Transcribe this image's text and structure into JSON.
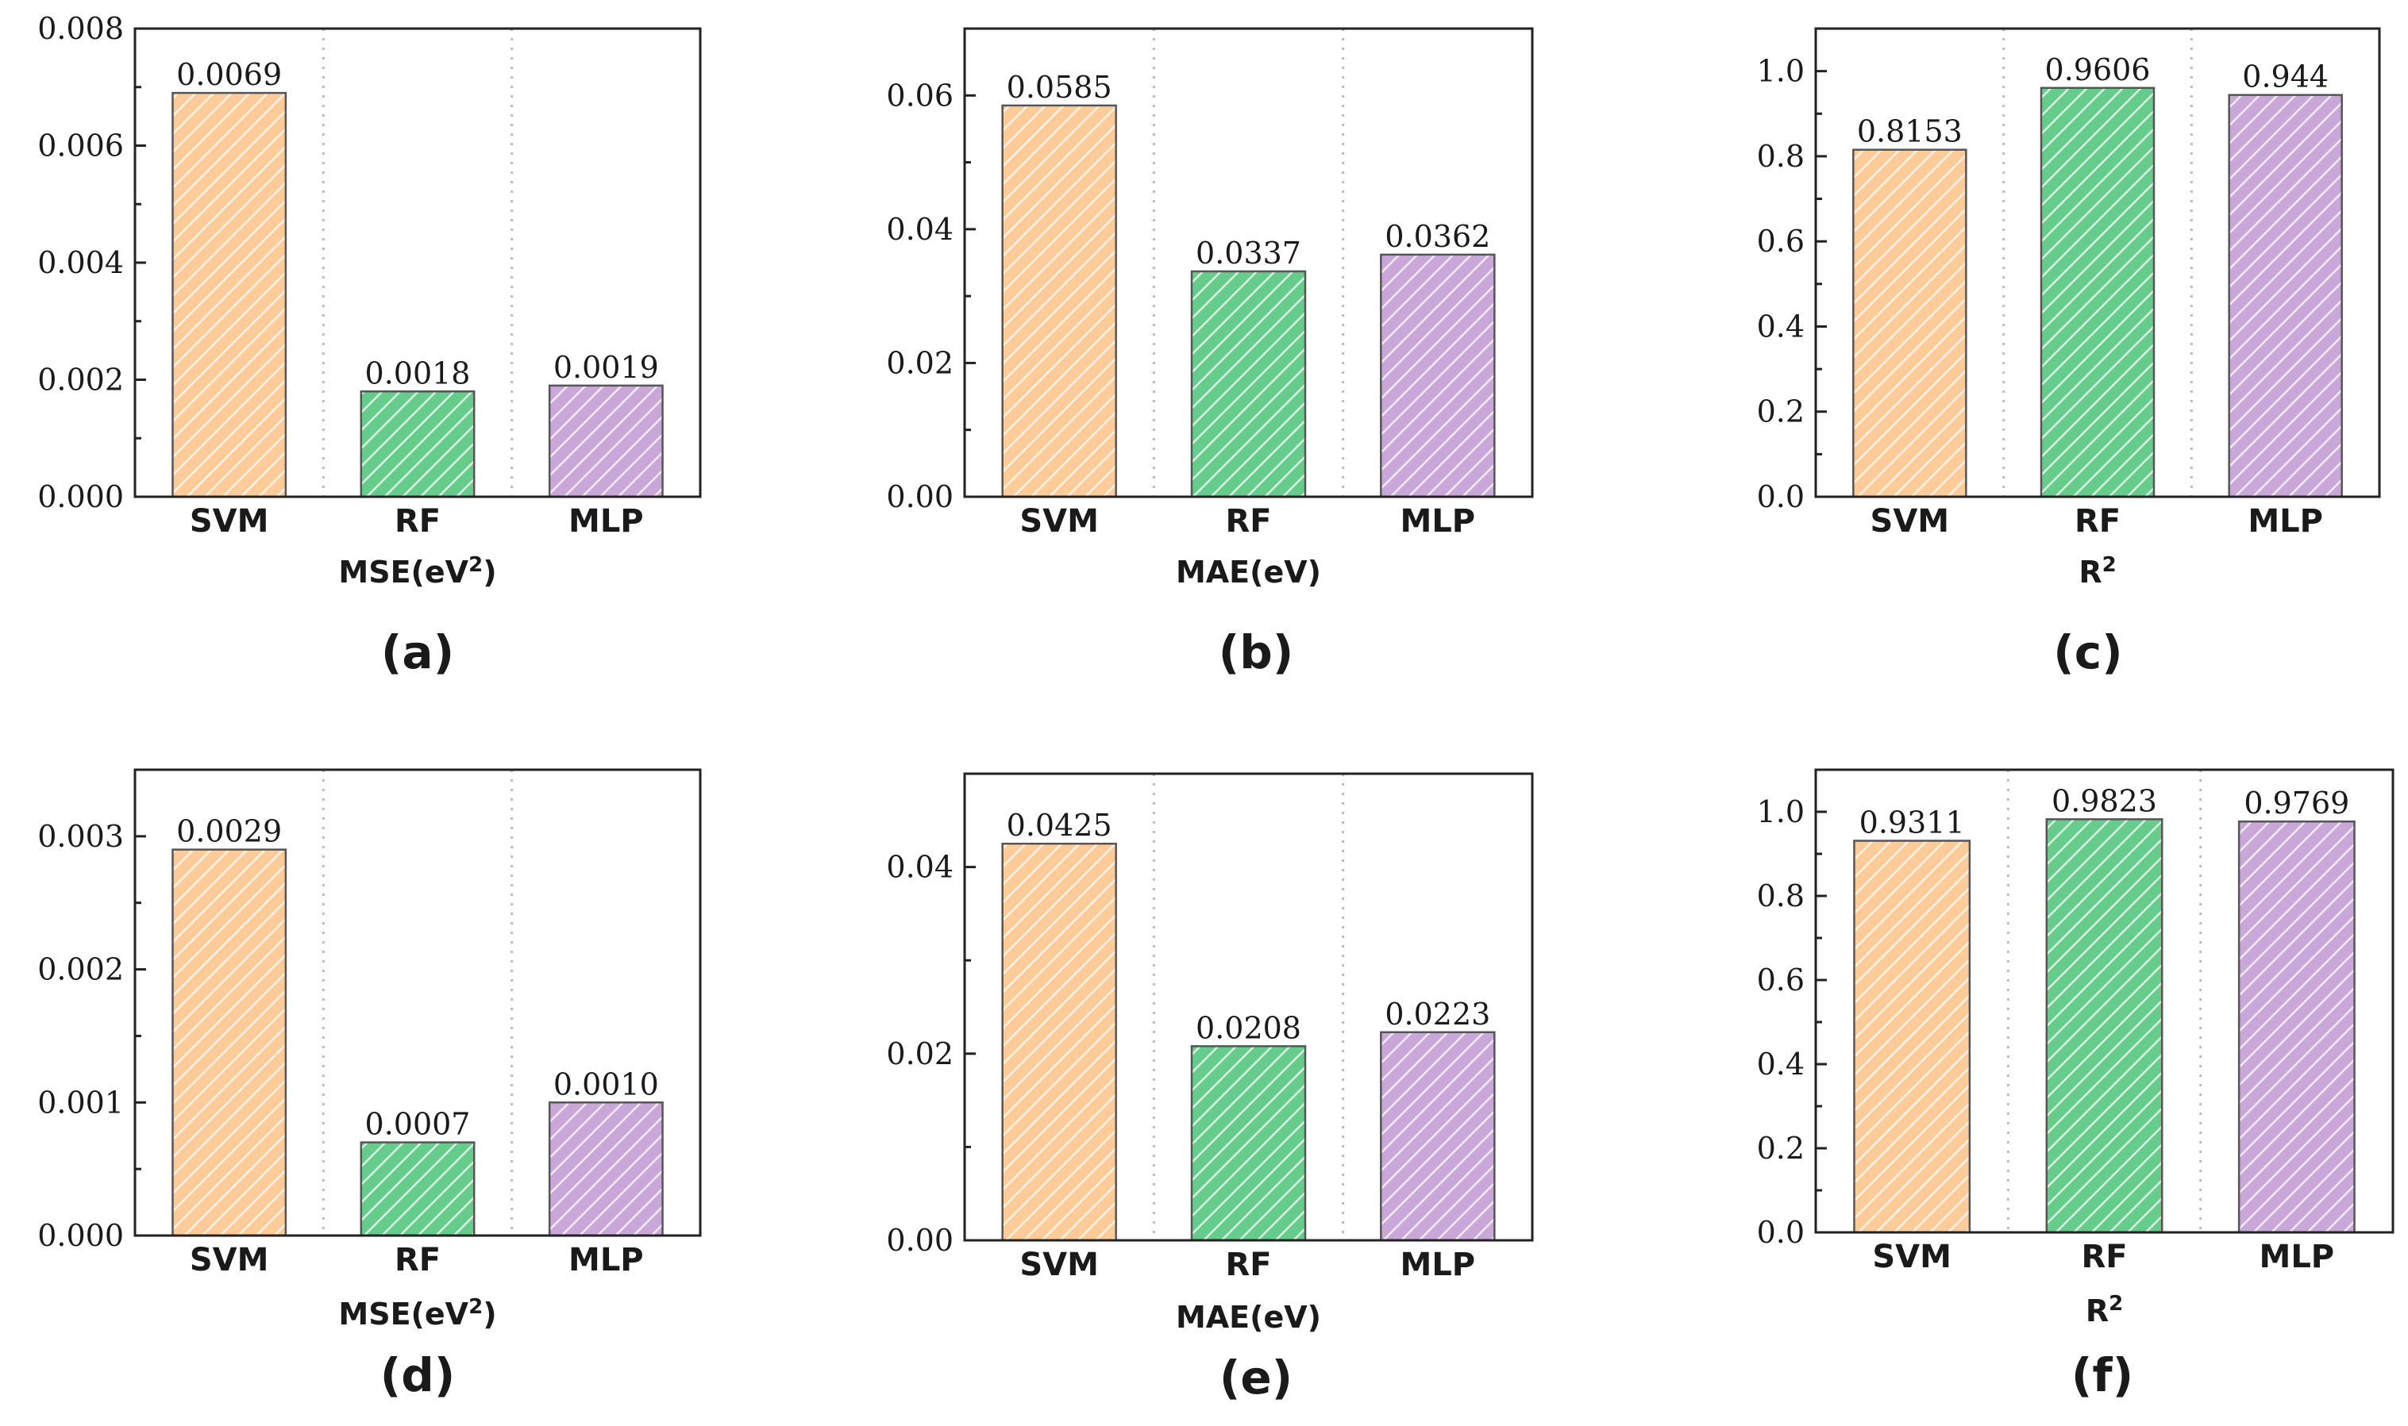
{
  "figure": {
    "colors": {
      "SVM": "#ffcc99",
      "RF": "#66cc8c",
      "MLP": "#c9a8d9",
      "hatch": "#ffffff"
    }
  },
  "chart_data": [
    {
      "type": "bar",
      "panel_label": "(a)",
      "categories": [
        "SVM",
        "RF",
        "MLP"
      ],
      "values": [
        0.0069,
        0.0018,
        0.0019
      ],
      "value_labels": [
        "0.0069",
        "0.0018",
        "0.0019"
      ],
      "xlabel": "MSE(eV",
      "xlabel_sup": "2",
      "xlabel_tail": ")",
      "ylim": [
        0,
        0.008
      ],
      "yticks": [
        0,
        0.002,
        0.004,
        0.006,
        0.008
      ],
      "ytick_labels": [
        "0.000",
        "0.002",
        "0.004",
        "0.006",
        "0.008"
      ]
    },
    {
      "type": "bar",
      "panel_label": "(b)",
      "categories": [
        "SVM",
        "RF",
        "MLP"
      ],
      "values": [
        0.0585,
        0.0337,
        0.0362
      ],
      "value_labels": [
        "0.0585",
        "0.0337",
        "0.0362"
      ],
      "xlabel": "MAE(eV)",
      "xlabel_sup": "",
      "xlabel_tail": "",
      "ylim": [
        0,
        0.07
      ],
      "yticks": [
        0,
        0.02,
        0.04,
        0.06
      ],
      "ytick_labels": [
        "0.00",
        "0.02",
        "0.04",
        "0.06"
      ]
    },
    {
      "type": "bar",
      "panel_label": "(c)",
      "categories": [
        "SVM",
        "RF",
        "MLP"
      ],
      "values": [
        0.8153,
        0.9606,
        0.944
      ],
      "value_labels": [
        "0.8153",
        "0.9606",
        "0.944"
      ],
      "xlabel": "R",
      "xlabel_sup": "2",
      "xlabel_tail": "",
      "ylim": [
        0,
        1.1
      ],
      "yticks": [
        0,
        0.2,
        0.4,
        0.6,
        0.8,
        1.0
      ],
      "ytick_labels": [
        "0.0",
        "0.2",
        "0.4",
        "0.6",
        "0.8",
        "1.0"
      ]
    },
    {
      "type": "bar",
      "panel_label": "(d)",
      "categories": [
        "SVM",
        "RF",
        "MLP"
      ],
      "values": [
        0.0029,
        0.0007,
        0.001
      ],
      "value_labels": [
        "0.0029",
        "0.0007",
        "0.0010"
      ],
      "xlabel": "MSE(eV",
      "xlabel_sup": "2",
      "xlabel_tail": ")",
      "ylim": [
        0,
        0.0035
      ],
      "yticks": [
        0,
        0.001,
        0.002,
        0.003
      ],
      "ytick_labels": [
        "0.000",
        "0.001",
        "0.002",
        "0.003"
      ]
    },
    {
      "type": "bar",
      "panel_label": "(e)",
      "categories": [
        "SVM",
        "RF",
        "MLP"
      ],
      "values": [
        0.0425,
        0.0208,
        0.0223
      ],
      "value_labels": [
        "0.0425",
        "0.0208",
        "0.0223"
      ],
      "xlabel": "MAE(eV)",
      "xlabel_sup": "",
      "xlabel_tail": "",
      "ylim": [
        0,
        0.05
      ],
      "yticks": [
        0,
        0.02,
        0.04
      ],
      "ytick_labels": [
        "0.00",
        "0.02",
        "0.04"
      ]
    },
    {
      "type": "bar",
      "panel_label": "(f)",
      "categories": [
        "SVM",
        "RF",
        "MLP"
      ],
      "values": [
        0.9311,
        0.9823,
        0.9769
      ],
      "value_labels": [
        "0.9311",
        "0.9823",
        "0.9769"
      ],
      "xlabel": "R",
      "xlabel_sup": "2",
      "xlabel_tail": "",
      "ylim": [
        0,
        1.1
      ],
      "yticks": [
        0,
        0.2,
        0.4,
        0.6,
        0.8,
        1.0
      ],
      "ytick_labels": [
        "0.0",
        "0.2",
        "0.4",
        "0.6",
        "0.8",
        "1.0"
      ]
    }
  ]
}
